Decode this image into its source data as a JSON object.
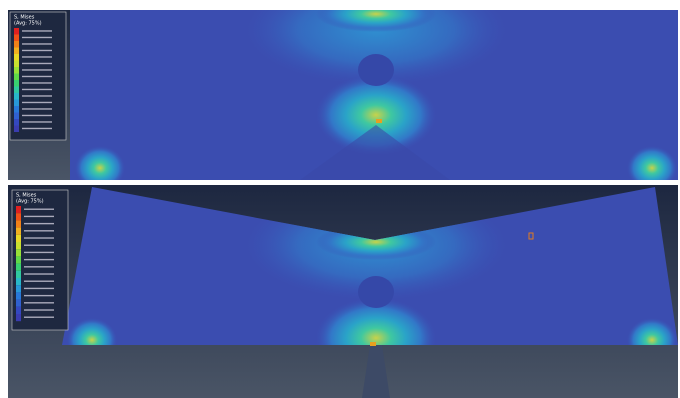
{
  "panels": [
    {
      "legend": {
        "title": "S, Mises",
        "subtitle": "(Avg: 75%)"
      }
    },
    {
      "legend": {
        "title": "S, Mises",
        "subtitle": "(Avg: 75%)"
      }
    }
  ]
}
